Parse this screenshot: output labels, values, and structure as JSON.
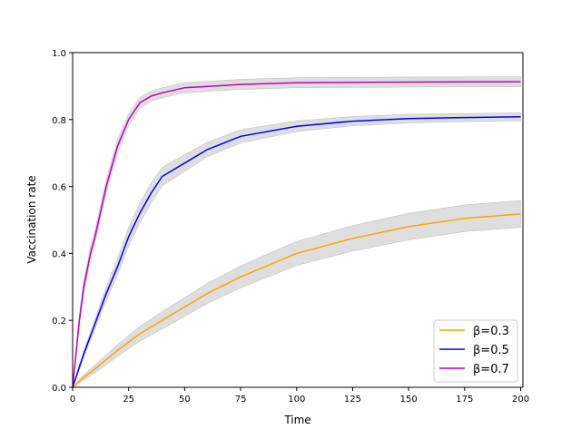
{
  "chart_data": {
    "type": "line",
    "title": "",
    "xlabel": "Time",
    "ylabel": "Vaccination rate",
    "xlim": [
      0,
      201
    ],
    "ylim": [
      0,
      1.0
    ],
    "xticks": [
      "0",
      "25",
      "50",
      "75",
      "100",
      "125",
      "150",
      "175",
      "200"
    ],
    "yticks": [
      "0.0",
      "0.2",
      "0.4",
      "0.6",
      "0.8",
      "1.0"
    ],
    "grid": false,
    "legend_position": "lower-right",
    "band_color": "#c8c8c8",
    "series": [
      {
        "name": "β=0.3",
        "color": "#ffa500",
        "x": [
          0,
          5,
          10,
          20,
          30,
          40,
          50,
          60,
          75,
          100,
          125,
          150,
          175,
          200
        ],
        "y": [
          0,
          0.03,
          0.055,
          0.11,
          0.16,
          0.2,
          0.24,
          0.28,
          0.33,
          0.4,
          0.445,
          0.48,
          0.505,
          0.518
        ],
        "band": [
          0,
          0.008,
          0.012,
          0.018,
          0.022,
          0.026,
          0.028,
          0.03,
          0.033,
          0.036,
          0.038,
          0.04,
          0.04,
          0.04
        ]
      },
      {
        "name": "β=0.5",
        "color": "#0000ff",
        "x": [
          0,
          5,
          10,
          15,
          20,
          25,
          30,
          35,
          40,
          50,
          60,
          75,
          100,
          125,
          150,
          175,
          200
        ],
        "y": [
          0,
          0.1,
          0.19,
          0.28,
          0.36,
          0.45,
          0.52,
          0.58,
          0.63,
          0.67,
          0.71,
          0.75,
          0.78,
          0.795,
          0.803,
          0.806,
          0.808
        ],
        "band": [
          0,
          0.01,
          0.015,
          0.02,
          0.025,
          0.028,
          0.03,
          0.03,
          0.028,
          0.025,
          0.022,
          0.02,
          0.016,
          0.014,
          0.013,
          0.012,
          0.012
        ]
      },
      {
        "name": "β=0.7",
        "color": "#bf00bf",
        "x": [
          0,
          3,
          5,
          8,
          10,
          15,
          20,
          25,
          30,
          35,
          40,
          50,
          75,
          100,
          150,
          200
        ],
        "y": [
          0,
          0.2,
          0.3,
          0.4,
          0.45,
          0.6,
          0.72,
          0.8,
          0.85,
          0.87,
          0.88,
          0.895,
          0.905,
          0.91,
          0.912,
          0.913
        ],
        "band": [
          0,
          0.015,
          0.02,
          0.02,
          0.02,
          0.02,
          0.02,
          0.018,
          0.016,
          0.015,
          0.015,
          0.015,
          0.015,
          0.015,
          0.015,
          0.015
        ]
      }
    ]
  }
}
